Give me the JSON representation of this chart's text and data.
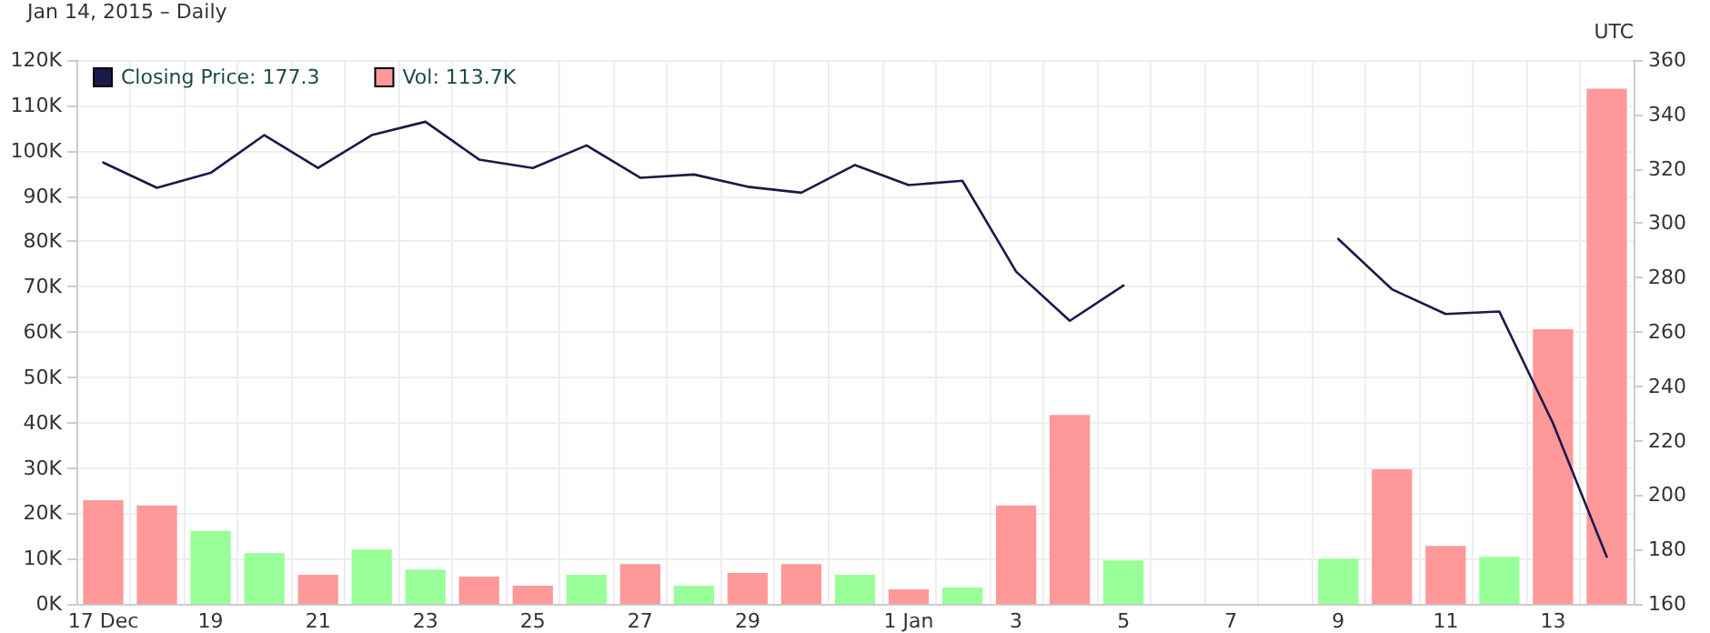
{
  "chart_data": {
    "type": "bar",
    "subtitle": "Jan 14, 2015 – Daily",
    "annotations": [
      "UTC"
    ],
    "categories": [
      "17 Dec",
      null,
      "19",
      null,
      "21",
      null,
      "23",
      null,
      "25",
      null,
      "27",
      null,
      "29",
      null,
      null,
      "1 Jan",
      null,
      "3",
      null,
      "5",
      null,
      "7",
      null,
      "9",
      null,
      "11",
      null,
      "13",
      null
    ],
    "series": [
      {
        "name": "Vol: 113.7K",
        "color": "#ff9999",
        "colors": [
          "#ff9999",
          "#ff9999",
          "#99ff99",
          "#99ff99",
          "#ff9999",
          "#99ff99",
          "#99ff99",
          "#ff9999",
          "#ff9999",
          "#99ff99",
          "#ff9999",
          "#99ff99",
          "#ff9999",
          "#ff9999",
          "#99ff99",
          "#ff9999",
          "#99ff99",
          "#ff9999",
          "#ff9999",
          "#99ff99",
          null,
          null,
          null,
          "#99ff99",
          "#ff9999",
          "#ff9999",
          "#99ff99",
          "#ff9999",
          "#ff9999"
        ],
        "values": [
          22.9,
          21.7,
          16.1,
          11.2,
          6.4,
          12.0,
          7.6,
          6.0,
          4.0,
          6.4,
          8.8,
          4.0,
          6.8,
          8.8,
          6.4,
          3.2,
          3.6,
          21.7,
          41.7,
          9.6,
          null,
          null,
          null,
          10.0,
          29.7,
          12.8,
          10.4,
          60.6,
          113.7
        ]
      },
      {
        "name": "Closing Price: 177.3",
        "type": "line",
        "axis": "y2",
        "color": "#1a1a4a",
        "values": [
          322.3,
          313.0,
          318.5,
          332.4,
          320.3,
          332.4,
          337.3,
          323.4,
          320.3,
          328.6,
          316.7,
          317.9,
          313.4,
          311.2,
          321.4,
          314.0,
          315.6,
          282.2,
          264.1,
          277.1,
          null,
          null,
          null,
          294.2,
          275.7,
          266.6,
          267.5,
          226.4,
          177.3
        ]
      }
    ],
    "ylim": [
      0,
      120
    ],
    "yticks": [
      {
        "value": 0,
        "label": "0K"
      },
      {
        "value": 10,
        "label": "10K"
      },
      {
        "value": 20,
        "label": "20K"
      },
      {
        "value": 30,
        "label": "30K"
      },
      {
        "value": 40,
        "label": "40K"
      },
      {
        "value": 50,
        "label": "50K"
      },
      {
        "value": 60,
        "label": "60K"
      },
      {
        "value": 70,
        "label": "70K"
      },
      {
        "value": 80,
        "label": "80K"
      },
      {
        "value": 90,
        "label": "90K"
      },
      {
        "value": 100,
        "label": "100K"
      },
      {
        "value": 110,
        "label": "110K"
      },
      {
        "value": 120,
        "label": "120K"
      }
    ],
    "y2lim": [
      160,
      360
    ],
    "y2ticks": [
      160,
      180,
      200,
      220,
      240,
      260,
      280,
      300,
      320,
      340,
      360
    ],
    "grid": true,
    "legend": "top left",
    "marker": "none",
    "line_style": "solid"
  }
}
